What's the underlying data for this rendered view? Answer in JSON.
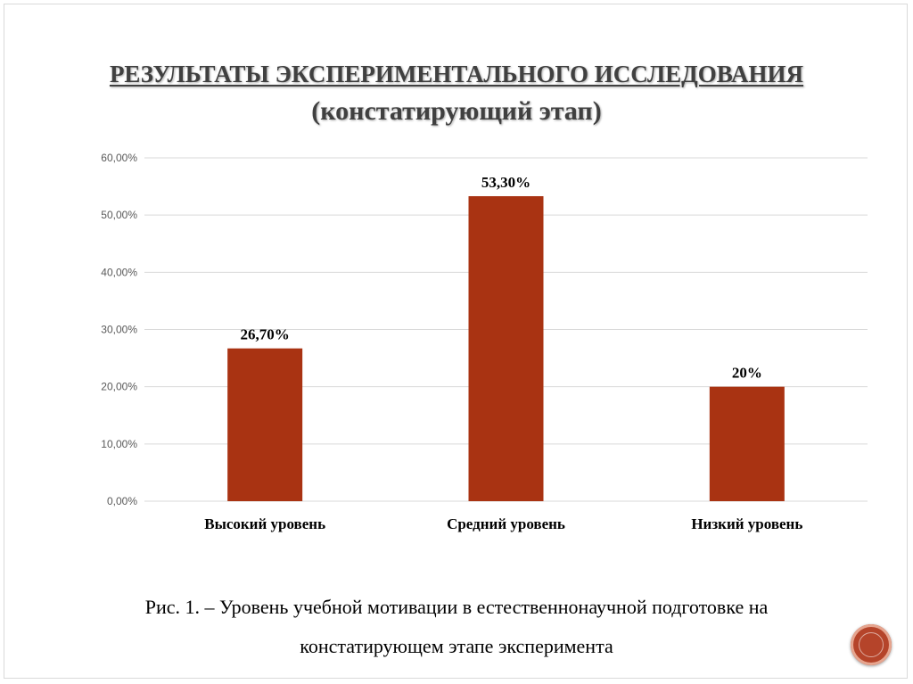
{
  "title": {
    "line1": "РЕЗУЛЬТАТЫ ЭКСПЕРИМЕНТАЛЬНОГО ИССЛЕДОВАНИЯ",
    "line2": "(констатирующий этап)"
  },
  "caption": {
    "line1": "Рис. 1. – Уровень учебной мотивации в естественнонаучной подготовке на",
    "line2": "констатирующем этапе эксперимента"
  },
  "colors": {
    "bar": "#a93312",
    "grid": "#d9d9d9"
  },
  "chart_data": {
    "type": "bar",
    "categories": [
      "Высокий уровень",
      "Средний уровень",
      "Низкий уровень"
    ],
    "values": [
      26.7,
      53.3,
      20
    ],
    "data_labels": [
      "26,70%",
      "53,30%",
      "20%"
    ],
    "ylim": [
      0,
      60
    ],
    "yticks": [
      0,
      10,
      20,
      30,
      40,
      50,
      60
    ],
    "ytick_labels": [
      "0,00%",
      "10,00%",
      "20,00%",
      "30,00%",
      "40,00%",
      "50,00%",
      "60,00%"
    ],
    "grid": true,
    "legend": false,
    "xlabel": "",
    "ylabel": ""
  }
}
